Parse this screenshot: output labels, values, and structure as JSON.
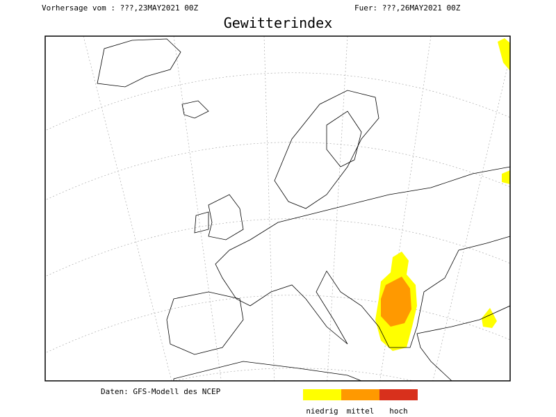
{
  "header": {
    "left": "Vorhersage vom : ???,23MAY2021 00Z",
    "right": "Fuer: ???,26MAY2021 00Z",
    "title": "Gewitterindex"
  },
  "footer": {
    "source": "Daten: GFS-Modell des NCEP"
  },
  "legend": [
    {
      "label": "niedrig",
      "color": "#ffff00"
    },
    {
      "label": "mittel",
      "color": "#ff9900"
    },
    {
      "label": "hoch",
      "color": "#d8301c"
    }
  ]
}
